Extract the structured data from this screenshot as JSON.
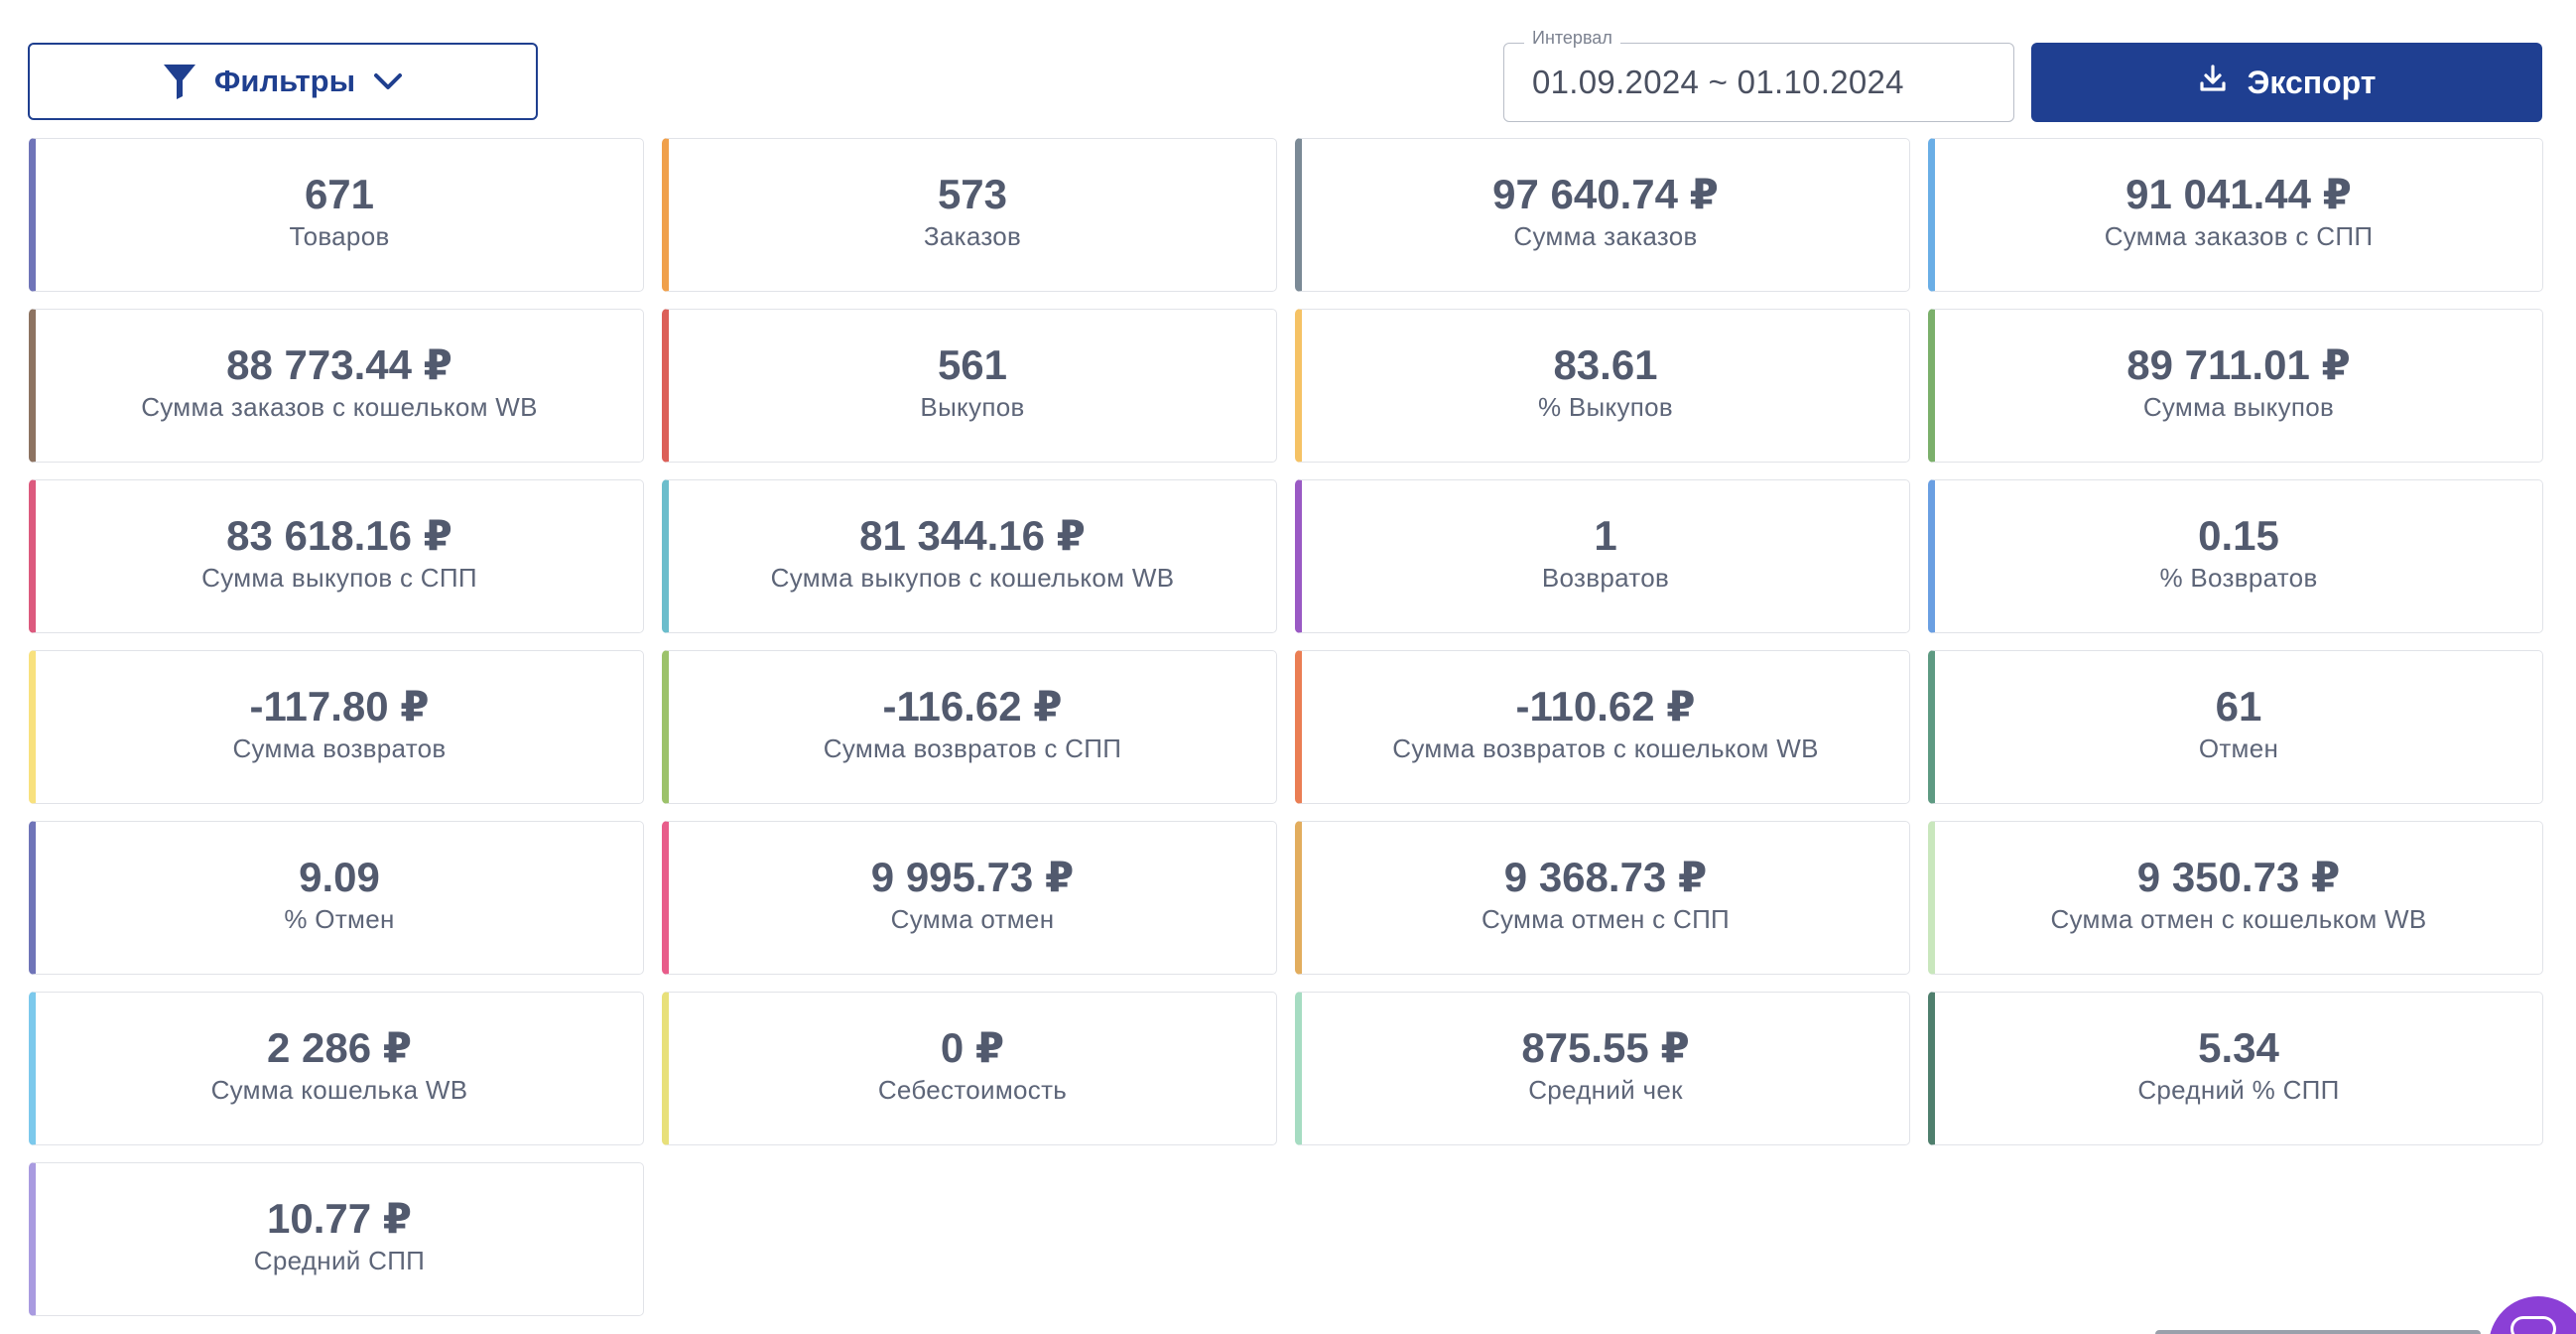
{
  "toolbar": {
    "filters_label": "Фильтры",
    "filter_icon": "funnel-icon",
    "dropdown_icon": "chevron-down-icon",
    "interval_label": "Интервал",
    "interval_value": "01.09.2024 ~ 01.10.2024",
    "export_label": "Экспорт",
    "export_icon": "download-icon"
  },
  "colors": {
    "primary": "#1f3f91",
    "card_value": "#525a6e",
    "card_label": "#5d6578"
  },
  "cards": [
    {
      "value": "671",
      "label": "Товаров",
      "color": "#6f74b8"
    },
    {
      "value": "573",
      "label": "Заказов",
      "color": "#f0a04b"
    },
    {
      "value": "97 640.74 ₽",
      "label": "Сумма заказов",
      "color": "#7b8a96"
    },
    {
      "value": "91 041.44 ₽",
      "label": "Сумма заказов с СПП",
      "color": "#6aaee6"
    },
    {
      "value": "88 773.44 ₽",
      "label": "Сумма заказов с кошельком WB",
      "color": "#8d7361"
    },
    {
      "value": "561",
      "label": "Выкупов",
      "color": "#dc5f58"
    },
    {
      "value": "83.61",
      "label": "% Выкупов",
      "color": "#f5c265"
    },
    {
      "value": "89 711.01 ₽",
      "label": "Сумма выкупов",
      "color": "#7bb06b"
    },
    {
      "value": "83 618.16 ₽",
      "label": "Сумма выкупов с СПП",
      "color": "#dc5a7e"
    },
    {
      "value": "81 344.16 ₽",
      "label": "Сумма выкупов с кошельком WB",
      "color": "#6bbdcc"
    },
    {
      "value": "1",
      "label": "Возвратов",
      "color": "#9a5ac4"
    },
    {
      "value": "0.15",
      "label": "% Возвратов",
      "color": "#6a9fe2"
    },
    {
      "value": "-117.80 ₽",
      "label": "Сумма возвратов",
      "color": "#f8e17e"
    },
    {
      "value": "-116.62 ₽",
      "label": "Сумма возвратов с СПП",
      "color": "#9cc26a"
    },
    {
      "value": "-110.62 ₽",
      "label": "Сумма возвратов с кошельком WB",
      "color": "#ea7e54"
    },
    {
      "value": "61",
      "label": "Отмен",
      "color": "#5e9a82"
    },
    {
      "value": "9.09",
      "label": "% Отмен",
      "color": "#6f74b8"
    },
    {
      "value": "9 995.73 ₽",
      "label": "Сумма отмен",
      "color": "#e85c8a"
    },
    {
      "value": "9 368.73 ₽",
      "label": "Сумма отмен с СПП",
      "color": "#e2ad5e"
    },
    {
      "value": "9 350.73 ₽",
      "label": "Сумма отмен с кошельком WB",
      "color": "#c9e7bd"
    },
    {
      "value": "2 286 ₽",
      "label": "Сумма кошелька WB",
      "color": "#7cc9ec"
    },
    {
      "value": "0 ₽",
      "label": "Себестоимость",
      "color": "#e8e07a"
    },
    {
      "value": "875.55 ₽",
      "label": "Средний чек",
      "color": "#a6dcc2"
    },
    {
      "value": "5.34",
      "label": "Средний % СПП",
      "color": "#4f7f6d"
    },
    {
      "value": "10.77 ₽",
      "label": "Средний СПП",
      "color": "#a99be0"
    }
  ]
}
